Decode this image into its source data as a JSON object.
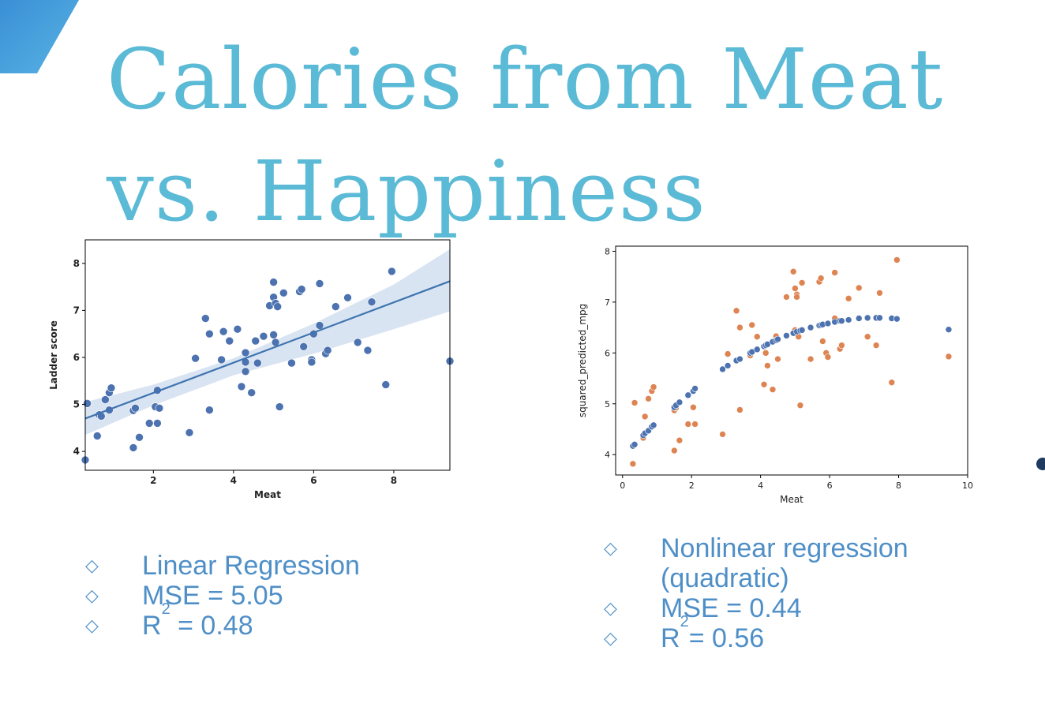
{
  "slide": {
    "title_lines": [
      "Calories from Meat",
      "vs. Happiness"
    ],
    "colors": {
      "title": "#5bbad5",
      "accent_blue": "#4f8fc7",
      "corner": "#3d8fd1",
      "dot": "#1e3a5f"
    },
    "bullets_left": [
      {
        "text": "Linear Regression"
      },
      {
        "text": "MSE = 5.05"
      },
      {
        "pre": "R",
        "sup": "2",
        "post": " = 0.48"
      }
    ],
    "bullets_right": [
      {
        "text": "Nonlinear regression (quadratic)"
      },
      {
        "text": "MSE = 0.44"
      },
      {
        "pre": "R",
        "sup": "2",
        "post": "= 0.56"
      }
    ],
    "bullet_marker": "◇"
  },
  "chart_data": [
    {
      "type": "scatter",
      "xlabel": "Meat",
      "ylabel": "Ladder score",
      "xlim": [
        0.3,
        9.4
      ],
      "ylim": [
        3.6,
        8.5
      ],
      "xticks": [
        2,
        4,
        6,
        8
      ],
      "yticks": [
        4,
        5,
        6,
        7,
        8
      ],
      "grid": false,
      "series": [
        {
          "color": "#4c72b0",
          "points": [
            [
              0.3,
              3.82
            ],
            [
              0.35,
              5.02
            ],
            [
              0.6,
              4.33
            ],
            [
              0.65,
              4.78
            ],
            [
              0.7,
              4.75
            ],
            [
              0.8,
              5.1
            ],
            [
              0.9,
              5.25
            ],
            [
              0.95,
              5.35
            ],
            [
              0.9,
              4.88
            ],
            [
              1.5,
              4.08
            ],
            [
              1.5,
              4.87
            ],
            [
              1.55,
              4.92
            ],
            [
              1.65,
              4.3
            ],
            [
              1.9,
              4.6
            ],
            [
              2.05,
              4.95
            ],
            [
              2.1,
              4.6
            ],
            [
              2.15,
              4.92
            ],
            [
              2.1,
              5.3
            ],
            [
              2.9,
              4.4
            ],
            [
              3.05,
              5.98
            ],
            [
              3.3,
              6.83
            ],
            [
              3.4,
              6.5
            ],
            [
              3.4,
              4.88
            ],
            [
              3.7,
              5.95
            ],
            [
              3.75,
              6.55
            ],
            [
              3.9,
              6.35
            ],
            [
              4.1,
              6.6
            ],
            [
              4.2,
              5.38
            ],
            [
              4.3,
              5.7
            ],
            [
              4.3,
              5.9
            ],
            [
              4.3,
              6.1
            ],
            [
              4.45,
              5.25
            ],
            [
              4.55,
              6.35
            ],
            [
              4.6,
              5.88
            ],
            [
              4.75,
              6.45
            ],
            [
              4.9,
              7.1
            ],
            [
              5.0,
              7.6
            ],
            [
              5.0,
              7.28
            ],
            [
              5.05,
              7.15
            ],
            [
              5.1,
              7.08
            ],
            [
              5.0,
              6.48
            ],
            [
              5.05,
              6.32
            ],
            [
              5.15,
              4.95
            ],
            [
              5.25,
              7.37
            ],
            [
              5.45,
              5.88
            ],
            [
              5.65,
              7.4
            ],
            [
              5.7,
              7.45
            ],
            [
              5.75,
              6.23
            ],
            [
              5.95,
              5.95
            ],
            [
              5.95,
              5.9
            ],
            [
              6.0,
              6.5
            ],
            [
              6.15,
              7.57
            ],
            [
              6.15,
              6.68
            ],
            [
              6.3,
              6.08
            ],
            [
              6.35,
              6.15
            ],
            [
              6.55,
              7.08
            ],
            [
              6.85,
              7.27
            ],
            [
              7.1,
              6.32
            ],
            [
              7.35,
              6.15
            ],
            [
              7.45,
              7.18
            ],
            [
              7.8,
              5.42
            ],
            [
              7.95,
              7.83
            ],
            [
              9.4,
              5.92
            ]
          ]
        }
      ],
      "regression_line": {
        "x": [
          0.3,
          9.4
        ],
        "y": [
          4.7,
          7.62
        ]
      },
      "confidence_band": {
        "x": [
          0.3,
          2,
          4,
          6,
          8,
          9.4
        ],
        "upper": [
          5.05,
          5.42,
          5.98,
          6.72,
          7.55,
          8.3
        ],
        "lower": [
          4.35,
          4.98,
          5.62,
          6.08,
          6.6,
          6.98
        ]
      }
    },
    {
      "type": "scatter",
      "xlabel": "Meat",
      "ylabel": "squared_predicted_mpg",
      "xlim": [
        -0.2,
        10
      ],
      "ylim": [
        3.6,
        8.1
      ],
      "xticks": [
        0,
        2,
        4,
        6,
        8,
        10
      ],
      "yticks": [
        4,
        5,
        6,
        7,
        8
      ],
      "grid": false,
      "series": [
        {
          "color": "#dd8452",
          "points": [
            [
              0.3,
              3.82
            ],
            [
              0.35,
              5.02
            ],
            [
              0.6,
              4.33
            ],
            [
              0.65,
              4.75
            ],
            [
              0.75,
              5.1
            ],
            [
              0.85,
              5.25
            ],
            [
              0.9,
              5.33
            ],
            [
              1.5,
              4.08
            ],
            [
              1.5,
              4.87
            ],
            [
              1.55,
              4.92
            ],
            [
              1.65,
              4.28
            ],
            [
              1.9,
              4.6
            ],
            [
              2.05,
              4.93
            ],
            [
              2.1,
              4.6
            ],
            [
              2.9,
              4.4
            ],
            [
              3.05,
              5.98
            ],
            [
              3.3,
              6.83
            ],
            [
              3.4,
              6.5
            ],
            [
              3.4,
              4.88
            ],
            [
              3.7,
              5.95
            ],
            [
              3.75,
              6.55
            ],
            [
              3.9,
              6.32
            ],
            [
              4.1,
              5.38
            ],
            [
              4.15,
              6.0
            ],
            [
              4.2,
              5.75
            ],
            [
              4.35,
              5.28
            ],
            [
              4.45,
              6.33
            ],
            [
              4.5,
              5.88
            ],
            [
              4.75,
              7.1
            ],
            [
              4.95,
              7.6
            ],
            [
              5.0,
              7.27
            ],
            [
              5.05,
              7.15
            ],
            [
              5.05,
              7.1
            ],
            [
              5.15,
              4.97
            ],
            [
              5.2,
              7.38
            ],
            [
              5.45,
              5.88
            ],
            [
              5.7,
              7.4
            ],
            [
              5.75,
              7.47
            ],
            [
              5.8,
              6.23
            ],
            [
              5.9,
              6.0
            ],
            [
              5.95,
              5.92
            ],
            [
              6.15,
              7.58
            ],
            [
              6.15,
              6.68
            ],
            [
              6.3,
              6.08
            ],
            [
              6.35,
              6.15
            ],
            [
              6.55,
              7.07
            ],
            [
              6.85,
              7.28
            ],
            [
              7.1,
              6.32
            ],
            [
              7.35,
              6.15
            ],
            [
              7.45,
              7.18
            ],
            [
              7.8,
              5.42
            ],
            [
              7.95,
              7.83
            ],
            [
              9.45,
              5.93
            ],
            [
              5.0,
              6.45
            ],
            [
              5.1,
              6.32
            ]
          ]
        },
        {
          "color": "#4c72b0",
          "points": [
            [
              0.3,
              4.17
            ],
            [
              0.35,
              4.2
            ],
            [
              0.6,
              4.38
            ],
            [
              0.65,
              4.42
            ],
            [
              0.75,
              4.47
            ],
            [
              0.85,
              4.55
            ],
            [
              0.9,
              4.58
            ],
            [
              1.5,
              4.93
            ],
            [
              1.55,
              4.97
            ],
            [
              1.65,
              5.03
            ],
            [
              1.9,
              5.17
            ],
            [
              2.05,
              5.25
            ],
            [
              2.1,
              5.3
            ],
            [
              2.9,
              5.68
            ],
            [
              3.05,
              5.75
            ],
            [
              3.3,
              5.85
            ],
            [
              3.4,
              5.88
            ],
            [
              3.7,
              6.0
            ],
            [
              3.75,
              6.02
            ],
            [
              3.9,
              6.07
            ],
            [
              4.1,
              6.13
            ],
            [
              4.15,
              6.15
            ],
            [
              4.2,
              6.17
            ],
            [
              4.35,
              6.22
            ],
            [
              4.45,
              6.25
            ],
            [
              4.5,
              6.27
            ],
            [
              4.75,
              6.34
            ],
            [
              4.95,
              6.39
            ],
            [
              5.05,
              6.42
            ],
            [
              5.15,
              6.44
            ],
            [
              5.2,
              6.45
            ],
            [
              5.45,
              6.5
            ],
            [
              5.7,
              6.54
            ],
            [
              5.75,
              6.55
            ],
            [
              5.8,
              6.56
            ],
            [
              5.95,
              6.58
            ],
            [
              6.15,
              6.61
            ],
            [
              6.3,
              6.63
            ],
            [
              6.35,
              6.63
            ],
            [
              6.55,
              6.65
            ],
            [
              6.85,
              6.68
            ],
            [
              7.1,
              6.69
            ],
            [
              7.35,
              6.69
            ],
            [
              7.45,
              6.69
            ],
            [
              7.8,
              6.68
            ],
            [
              7.95,
              6.67
            ],
            [
              9.45,
              6.46
            ]
          ]
        }
      ]
    }
  ]
}
